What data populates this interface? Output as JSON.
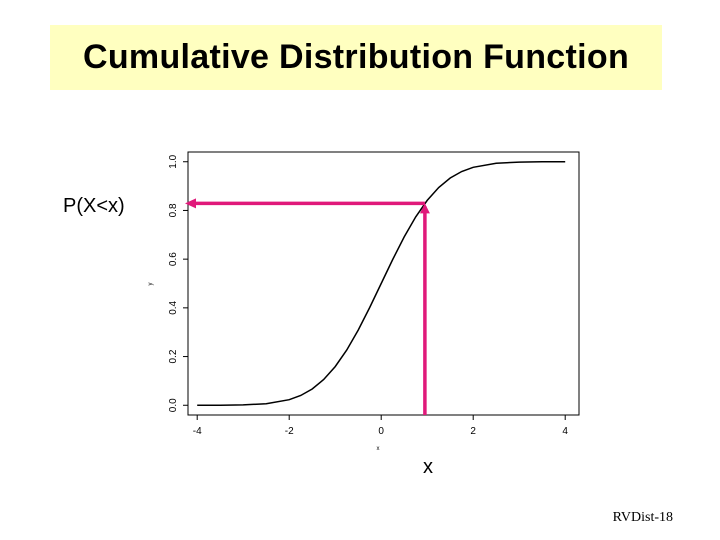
{
  "slide": {
    "title": "Cumulative Distribution Function",
    "footer": "RVDist-18",
    "accent_color": "#e0197a",
    "title_bg": "#ffffc0"
  },
  "chart_data": {
    "type": "line",
    "title": "",
    "xlabel": "x",
    "ylabel": "y",
    "xlim": [
      -4.2,
      4.3
    ],
    "ylim": [
      -0.04,
      1.04
    ],
    "x_ticks": [
      -4,
      -2,
      0,
      2,
      4
    ],
    "x_tick_labels": [
      "-4",
      "-2",
      "0",
      "2",
      "4"
    ],
    "y_ticks": [
      0.0,
      0.2,
      0.4,
      0.6,
      0.8,
      1.0
    ],
    "y_tick_labels": [
      "0.0",
      "0.2",
      "0.4",
      "0.6",
      "0.8",
      "1.0"
    ],
    "grid": false,
    "series": [
      {
        "name": "",
        "color": "#000000",
        "x": [
          -4,
          -3.5,
          -3,
          -2.5,
          -2,
          -1.75,
          -1.5,
          -1.25,
          -1,
          -0.75,
          -0.5,
          -0.25,
          0,
          0.25,
          0.5,
          0.75,
          1,
          1.25,
          1.5,
          1.75,
          2,
          2.5,
          3,
          3.5,
          4
        ],
        "y": [
          0.0,
          0.0002,
          0.0013,
          0.0062,
          0.0228,
          0.0401,
          0.0668,
          0.1056,
          0.1587,
          0.2266,
          0.3085,
          0.4013,
          0.5,
          0.5987,
          0.6915,
          0.7734,
          0.8413,
          0.8944,
          0.9332,
          0.9599,
          0.9772,
          0.9938,
          0.9987,
          0.9998,
          1.0
        ]
      }
    ],
    "annotation": {
      "x_value": 0.95,
      "y_value": 0.8289,
      "x_label": "x",
      "y_label": "P(X<x)"
    }
  }
}
